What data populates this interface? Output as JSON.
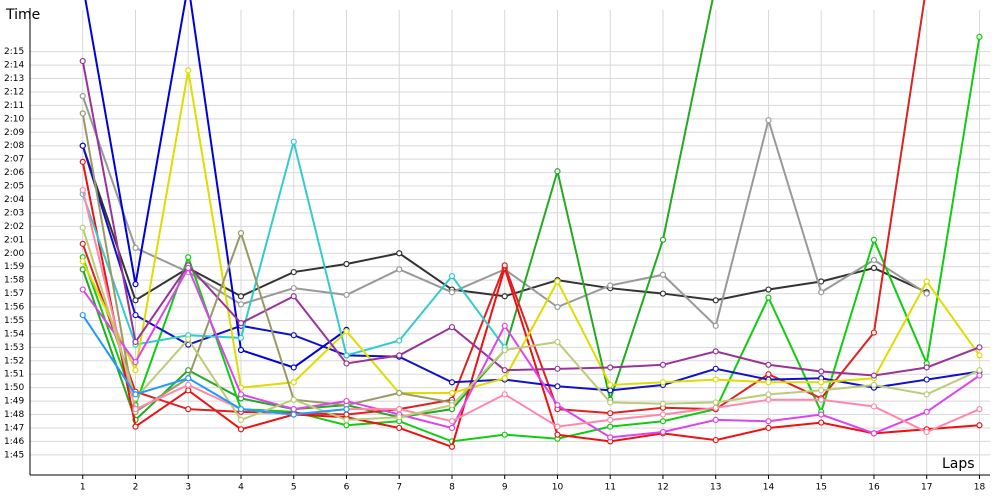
{
  "chart_data": {
    "type": "line",
    "y_label": "Time",
    "x_label": "Laps",
    "x": [
      1,
      2,
      3,
      4,
      5,
      6,
      7,
      8,
      9,
      10,
      11,
      12,
      13,
      14,
      15,
      16,
      17,
      18
    ],
    "xlim": [
      0,
      18.2
    ],
    "xticks": [
      1,
      2,
      3,
      4,
      5,
      6,
      7,
      8,
      9,
      10,
      11,
      12,
      13,
      14,
      15,
      16,
      17,
      18
    ],
    "ylim": [
      103.5,
      138.1
    ],
    "yticks": [
      {
        "value": 105,
        "label": "1:45"
      },
      {
        "value": 106,
        "label": "1:46"
      },
      {
        "value": 107,
        "label": "1:47"
      },
      {
        "value": 108,
        "label": "1:48"
      },
      {
        "value": 109,
        "label": "1:49"
      },
      {
        "value": 110,
        "label": "1:50"
      },
      {
        "value": 111,
        "label": "1:51"
      },
      {
        "value": 112,
        "label": "1:52"
      },
      {
        "value": 113,
        "label": "1:53"
      },
      {
        "value": 114,
        "label": "1:54"
      },
      {
        "value": 115,
        "label": "1:55"
      },
      {
        "value": 116,
        "label": "1:56"
      },
      {
        "value": 117,
        "label": "1:57"
      },
      {
        "value": 118,
        "label": "1:58"
      },
      {
        "value": 119,
        "label": "1:59"
      },
      {
        "value": 120,
        "label": "2:00"
      },
      {
        "value": 121,
        "label": "2:01"
      },
      {
        "value": 122,
        "label": "2:02"
      },
      {
        "value": 123,
        "label": "2:03"
      },
      {
        "value": 124,
        "label": "2:04"
      },
      {
        "value": 125,
        "label": "2:05"
      },
      {
        "value": 126,
        "label": "2:06"
      },
      {
        "value": 127,
        "label": "2:07"
      },
      {
        "value": 128,
        "label": "2:08"
      },
      {
        "value": 129,
        "label": "2:09"
      },
      {
        "value": 130,
        "label": "2:10"
      },
      {
        "value": 131,
        "label": "2:11"
      },
      {
        "value": 132,
        "label": "2:12"
      },
      {
        "value": 133,
        "label": "2:13"
      },
      {
        "value": 134,
        "label": "2:14"
      },
      {
        "value": 135,
        "label": "2:15"
      }
    ],
    "grid": true,
    "series": [
      {
        "color": "#333333",
        "values": [
          128,
          116.5,
          118.9,
          116.8,
          118.6,
          119.2,
          120.0,
          117.3,
          116.8,
          118.0,
          117.4,
          117.0,
          116.5,
          117.3,
          117.9,
          118.9,
          117.1,
          null
        ]
      },
      {
        "color": "#999999",
        "values": [
          131.7,
          120.4,
          118.6,
          116.2,
          117.4,
          116.9,
          118.8,
          117.1,
          118.8,
          116.0,
          117.6,
          118.4,
          114.6,
          129.9,
          117.1,
          119.5,
          117.0,
          null
        ]
      },
      {
        "color": "#22aa22",
        "values": [
          118.8,
          107.6,
          111.3,
          109.2,
          108.4,
          108.7,
          107.8,
          108.4,
          112.8,
          126.1,
          109.1,
          121.0,
          140,
          null,
          null,
          null,
          null,
          null
        ]
      },
      {
        "color": "#11cc11",
        "values": [
          119.7,
          108.7,
          119.7,
          108.4,
          108.2,
          107.2,
          107.5,
          106.0,
          106.5,
          106.2,
          107.1,
          107.5,
          108.4,
          116.7,
          108.2,
          121.0,
          111.8,
          136.1
        ]
      },
      {
        "color": "#ee1111",
        "values": [
          126.8,
          107.1,
          109.8,
          106.9,
          108.0,
          107.8,
          107.0,
          105.6,
          118.9,
          106.5,
          106.0,
          106.6,
          106.1,
          107.0,
          107.4,
          106.6,
          106.9,
          107.2
        ]
      },
      {
        "color": "#dd2222",
        "values": [
          120.7,
          109.7,
          108.4,
          108.2,
          108.1,
          108.0,
          108.4,
          109.1,
          119.1,
          108.4,
          108.1,
          108.5,
          108.4,
          111.0,
          109.2,
          114.1,
          140,
          null
        ]
      },
      {
        "color": "#1111cc",
        "values": [
          128.0,
          115.4,
          113.2,
          114.6,
          113.9,
          112.4,
          112.3,
          110.4,
          110.6,
          110.1,
          109.8,
          110.2,
          111.4,
          110.6,
          110.7,
          110.0,
          110.6,
          111.2
        ]
      },
      {
        "color": "#0000dd",
        "values": [
          140,
          117.7,
          140,
          112.8,
          111.5,
          114.3,
          null,
          null,
          null,
          null,
          null,
          null,
          null,
          null,
          null,
          null,
          null,
          null
        ]
      },
      {
        "color": "#33cccc",
        "values": [
          124.4,
          113.2,
          113.9,
          113.7,
          128.3,
          112.4,
          113.5,
          118.3,
          113.0,
          null,
          null,
          null,
          null,
          null,
          null,
          null,
          null,
          null
        ]
      },
      {
        "color": "#dddd00",
        "values": [
          119.4,
          111.3,
          133.6,
          110.0,
          110.4,
          114.2,
          109.6,
          109.6,
          110.7,
          117.9,
          110.2,
          110.4,
          110.6,
          110.4,
          110.4,
          110.7,
          117.9,
          112.4
        ]
      },
      {
        "color": "#993399",
        "values": [
          134.3,
          113.4,
          119.1,
          114.8,
          116.8,
          111.8,
          112.4,
          114.5,
          111.3,
          111.4,
          111.5,
          111.7,
          112.7,
          111.7,
          111.2,
          110.9,
          111.5,
          113.0
        ]
      },
      {
        "color": "#999966",
        "values": [
          130.4,
          108.2,
          110.7,
          121.5,
          109.1,
          108.7,
          109.6,
          108.9,
          null,
          null,
          null,
          null,
          null,
          null,
          null,
          null,
          null,
          null
        ]
      },
      {
        "color": "#dd44ee",
        "values": [
          117.3,
          111.9,
          118.9,
          109.5,
          108.4,
          109.0,
          108.0,
          107.0,
          114.6,
          108.7,
          106.3,
          106.7,
          107.6,
          107.5,
          108.0,
          106.6,
          108.2,
          110.9
        ]
      },
      {
        "color": "#ff88aa",
        "values": [
          124.7,
          108.4,
          110.2,
          108.4,
          108.0,
          108.4,
          108.4,
          107.5,
          109.5,
          107.1,
          107.6,
          108.0,
          108.5,
          109.1,
          109.1,
          108.6,
          106.7,
          108.4
        ]
      },
      {
        "color": "#bbcc77",
        "values": [
          121.9,
          109.2,
          113.6,
          107.6,
          109.1,
          107.6,
          107.8,
          108.7,
          112.8,
          113.4,
          108.9,
          108.8,
          108.9,
          109.5,
          109.8,
          110.2,
          109.5,
          111.3
        ]
      },
      {
        "color": "#2299ff",
        "values": [
          115.4,
          109.5,
          110.7,
          108.4,
          108.0,
          108.4,
          null,
          null,
          null,
          null,
          null,
          null,
          null,
          null,
          null,
          null,
          null,
          null
        ]
      }
    ]
  }
}
